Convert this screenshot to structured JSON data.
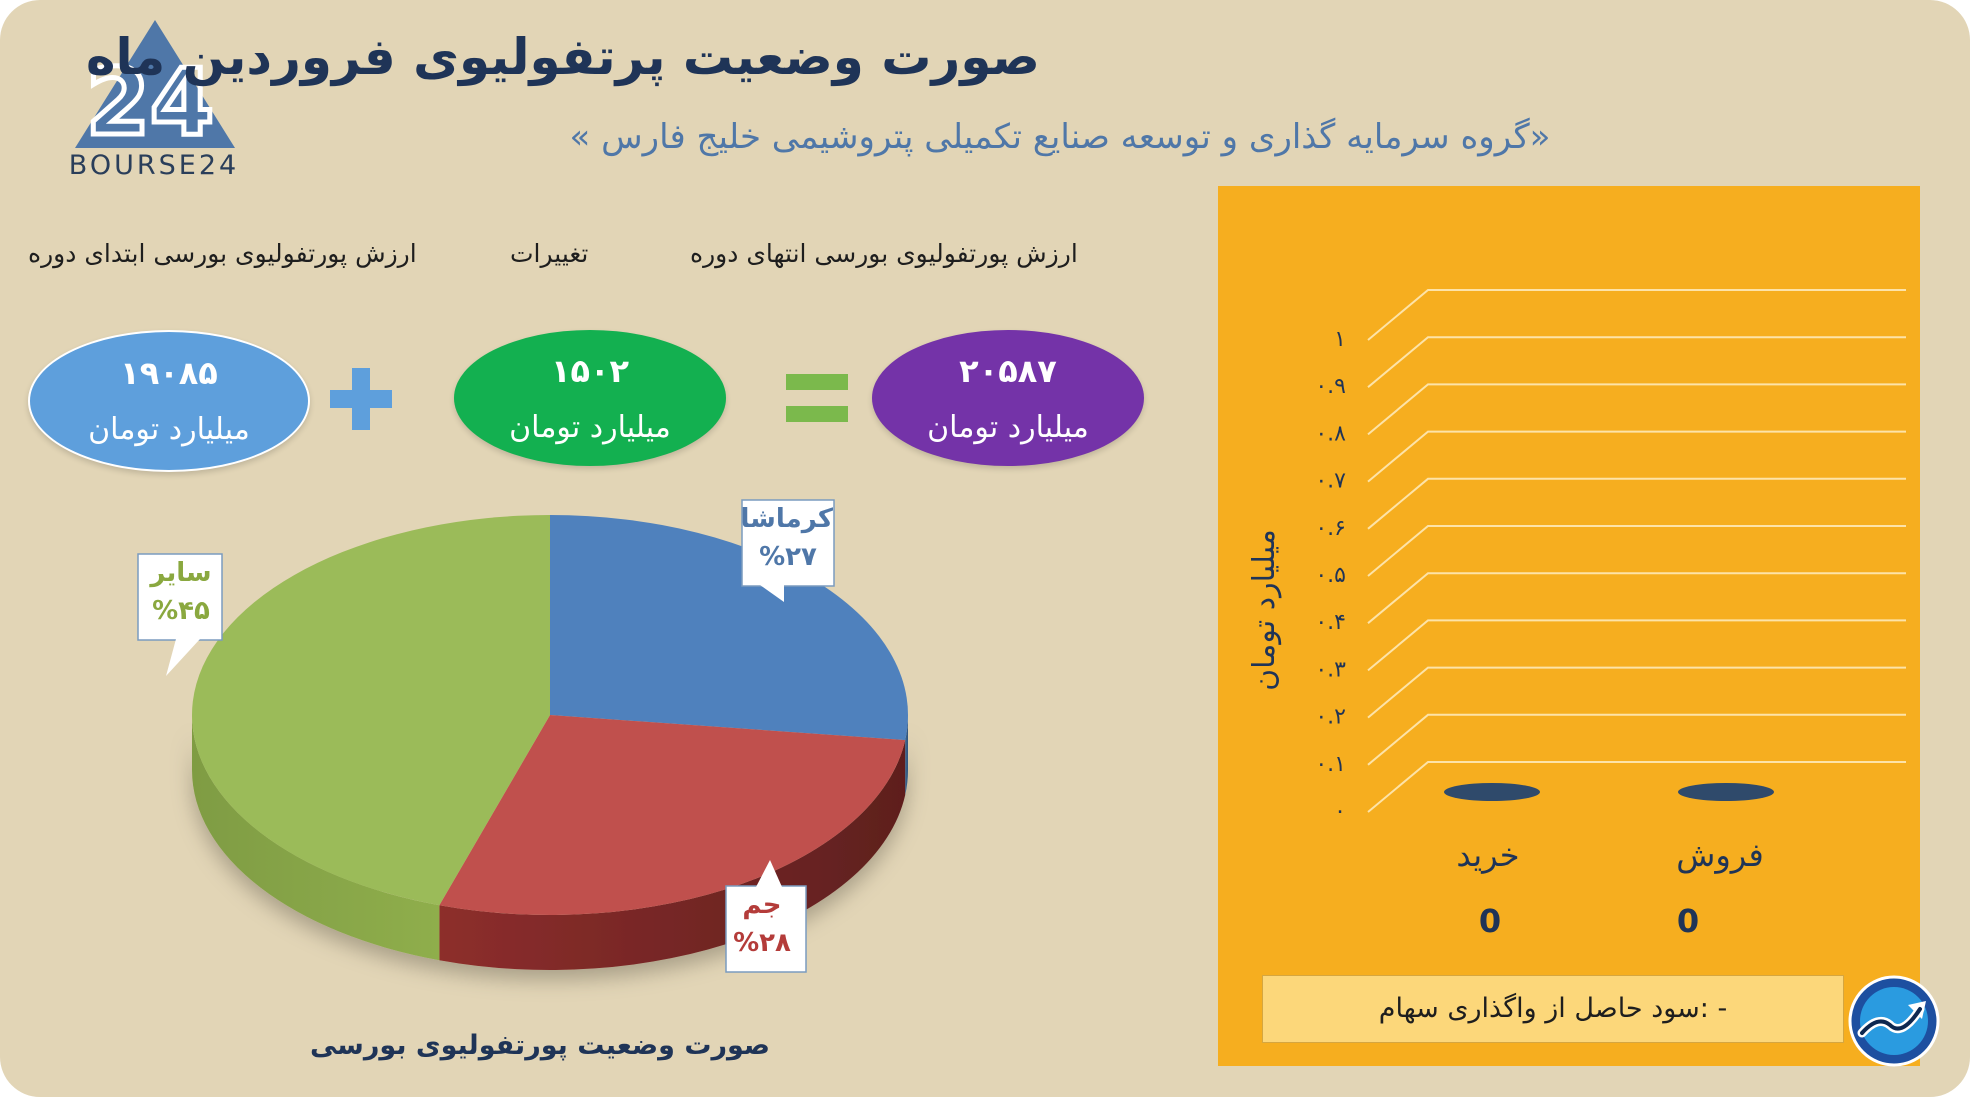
{
  "header": {
    "title": "صورت وضعیت پرتفولیوی فروردین ماه",
    "subtitle": "«گروه سرمایه گذاری و توسعه صنایع تکمیلی پتروشیمی خلیج فارس »"
  },
  "logo": {
    "text": "BOURSE24",
    "mark_text": "24",
    "icon": "bourse24-triangle-logo"
  },
  "summary": {
    "start_label": "ارزش پورتفولیوی بورسی ابتدای دوره",
    "change_label": "تغییرات",
    "end_label": "ارزش پورتفولیوی بورسی انتهای دوره",
    "start_value": "۱۹۰۸۵",
    "change_value": "۱۵۰۲",
    "end_value": "۲۰۵۸۷",
    "unit": "میلیارد تومان",
    "plus_icon": "plus-icon",
    "equals_icon": "equals-icon",
    "colors": {
      "start": "#5e9fdc",
      "change": "#13b050",
      "end": "#7433a8",
      "plus": "#5e9fdc",
      "equals": "#7bb94c"
    }
  },
  "chart_data": [
    {
      "type": "pie",
      "caption": "صورت وضعیت پورتفولیوی بورسی",
      "slices": [
        {
          "name": "کرماشا",
          "label": "%۲۷",
          "value": 27,
          "color": "#4f81bd"
        },
        {
          "name": "جم",
          "label": "%۲۸",
          "value": 28,
          "color": "#c0504d"
        },
        {
          "name": "سایر",
          "label": "%۴۵",
          "value": 45,
          "color": "#9bbb59"
        }
      ],
      "style": "3d"
    },
    {
      "type": "bar",
      "categories": [
        "خرید",
        "فروش"
      ],
      "values": [
        0,
        0
      ],
      "value_labels": [
        "0",
        "0"
      ],
      "ylabel": "میلیارد تومان",
      "yticks": [
        "۰",
        "۰.۱",
        "۰.۲",
        "۰.۳",
        "۰.۴",
        "۰.۵",
        "۰.۶",
        "۰.۷",
        "۰.۸",
        "۰.۹",
        "۱"
      ],
      "ylim": [
        0,
        1
      ],
      "grid": true,
      "bar_color": "#2f4a6b",
      "background": "#f6ae1f"
    }
  ],
  "footer": {
    "profit_text": "- :سود حاصل از واگذاری سهام",
    "brand_icon": "trend-arrow-icon"
  }
}
